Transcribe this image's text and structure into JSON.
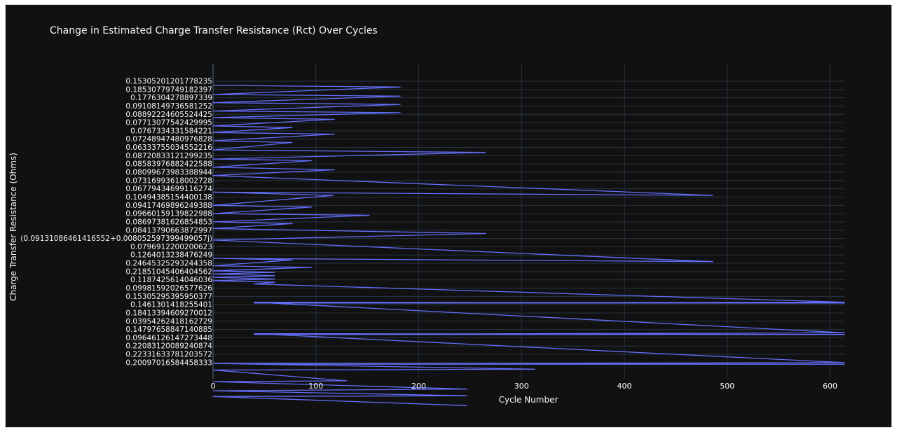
{
  "chart_data": {
    "type": "line",
    "title": "Change in Estimated Charge Transfer Resistance (Rct) Over Cycles",
    "xlabel": "Cycle Number",
    "ylabel": "Charge Transfer Resistance (Ohms)",
    "x_axis": {
      "range": [
        0,
        614
      ],
      "ticks": [
        0,
        100,
        200,
        300,
        400,
        500,
        600
      ]
    },
    "y_axis_type": "category",
    "y_tick_labels": [
      "0.15305201201778235",
      "0.18530779749182397",
      "0.1776304278897339",
      "0.09108149736581252",
      "0.08892224605524425",
      "0.07713077542429995",
      "0.0767334331584221",
      "0.07248947480976828",
      "0.06333755034552216",
      "0.08720833121299235",
      "0.08583976882422588",
      "0.08099673983388944",
      "0.07316993618002728",
      "0.06779434699116274",
      "0.10494385154400138",
      "0.09417469896249388",
      "0.09660159139822988",
      "0.08697381626854853",
      "0.08413790663872997",
      "(0.09131086461416552+0.008052597399499057j)",
      "0.0796912200200623",
      "0.1264013238476249",
      "0.24645325293244358",
      "0.21851045406404562",
      "0.1187425614046036",
      "0.09981592026577626",
      "0.15305295395950377",
      "0.1461301418255401",
      "0.18413394609270012",
      "0.03954262418162729",
      "0.14797658847140885",
      "0.09646126147273448",
      "0.22083120089240874",
      "0.22331633781203572",
      "0.20097016584458333"
    ],
    "series": [
      {
        "x": [
          0,
          182,
          0,
          182,
          0,
          182,
          0,
          182,
          0,
          118,
          0,
          77,
          0,
          118,
          0,
          77,
          0,
          265,
          0,
          96,
          0,
          118,
          0,
          486,
          0,
          117,
          0,
          96,
          0,
          152,
          0,
          77,
          0,
          265,
          0,
          486,
          0,
          77,
          0,
          96,
          0,
          60,
          0,
          60,
          0,
          60,
          0,
          60,
          40,
          614,
          40,
          614,
          40,
          614,
          40,
          614,
          40,
          614,
          40,
          614,
          0,
          313,
          0,
          130,
          0,
          247,
          0,
          247,
          0,
          247
        ],
        "y": [
          0.5,
          0.7,
          1.6,
          1.8,
          2.6,
          2.8,
          3.6,
          3.8,
          4.4,
          4.6,
          5.4,
          5.6,
          6.2,
          6.4,
          7.2,
          7.4,
          8.3,
          8.6,
          9.4,
          9.6,
          10.4,
          10.7,
          11.4,
          13.8,
          13.4,
          13.8,
          15.0,
          15.2,
          16.0,
          16.2,
          17.0,
          17.2,
          17.8,
          18.4,
          19.2,
          21.8,
          21.4,
          21.6,
          22.3,
          22.5,
          22.9,
          23.1,
          23.3,
          23.5,
          23.7,
          23.9,
          24.1,
          24.3,
          24.5,
          26.7,
          26.8,
          26.8,
          26.7,
          30.4,
          30.6,
          30.6,
          30.5,
          34.0,
          34.2,
          34.2,
          34.1,
          34.8,
          34.9,
          36.2,
          36.3,
          37.2,
          37.4,
          38.0,
          38.1,
          39.2
        ]
      }
    ],
    "colors": {
      "line": "#636efa",
      "paper": "#111111",
      "grid": "#283442",
      "text": "#f2f5fa"
    },
    "grid": true,
    "legend": "none"
  }
}
